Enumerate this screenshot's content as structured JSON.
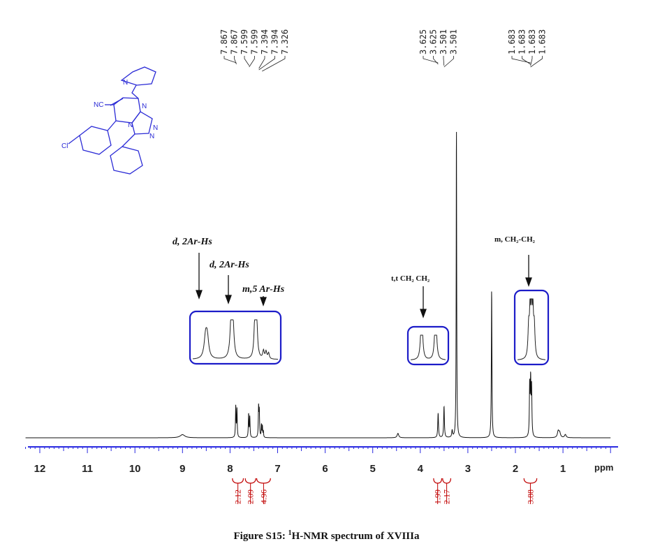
{
  "caption": {
    "prefix": "Figure S15: ",
    "superscript": "1",
    "rest": "H-NMR spectrum of XVIIIa"
  },
  "colors": {
    "axis": "#2a2ae0",
    "integral": "#c00000",
    "box": "#1c1cc8",
    "molecule": "#2b2bd6",
    "spectrum": "#111111"
  },
  "molecule": {
    "labels": [
      "NC",
      "N",
      "N",
      "N",
      "N",
      "N",
      "Cl"
    ]
  },
  "annotations": [
    {
      "text": "d, 2Ar-Hs"
    },
    {
      "text": "d, 2Ar-Hs"
    },
    {
      "text": "m,5 Ar-Hs"
    },
    {
      "text": "t,t  CH₂   CH₂"
    },
    {
      "text": "m,  CH₂-CH₂"
    }
  ],
  "chart_data": {
    "type": "line",
    "title": "",
    "xlabel": "ppm",
    "ylabel": "",
    "xlim": [
      12.3,
      0.0
    ],
    "x_reversed": true,
    "ylim": [
      0,
      1
    ],
    "grid": false,
    "x_major_ticks": [
      "12",
      "11",
      "10",
      "9",
      "8",
      "7",
      "6",
      "5",
      "4",
      "3",
      "2",
      "1"
    ],
    "x_unit_label": "ppm",
    "peak_labels": [
      {
        "group": "aromatic",
        "values": [
          "7.867",
          "7.867",
          "7.599",
          "7.599",
          "7.394",
          "7.394",
          "7.326"
        ]
      },
      {
        "group": "ch2",
        "values": [
          "3.625",
          "3.625",
          "3.501",
          "3.501"
        ]
      },
      {
        "group": "ch2ch2",
        "values": [
          "1.683",
          "1.683",
          "1.683",
          "1.683"
        ]
      }
    ],
    "integrals": [
      {
        "value": "2.12",
        "from": 7.95,
        "to": 7.72
      },
      {
        "value": "2.09",
        "from": 7.68,
        "to": 7.46
      },
      {
        "value": "4.96",
        "from": 7.44,
        "to": 7.15
      },
      {
        "value": "1.99",
        "from": 3.72,
        "to": 3.55
      },
      {
        "value": "2.17",
        "from": 3.53,
        "to": 3.36
      },
      {
        "value": "3.88",
        "from": 1.82,
        "to": 1.55
      }
    ],
    "peaks": [
      {
        "ppm": 9.0,
        "h": 0.01,
        "w": 0.06
      },
      {
        "ppm": 7.88,
        "h": 0.1,
        "w": 0.007
      },
      {
        "ppm": 7.855,
        "h": 0.09,
        "w": 0.007
      },
      {
        "ppm": 7.61,
        "h": 0.075,
        "w": 0.007
      },
      {
        "ppm": 7.585,
        "h": 0.065,
        "w": 0.007
      },
      {
        "ppm": 7.4,
        "h": 0.095,
        "w": 0.007
      },
      {
        "ppm": 7.385,
        "h": 0.08,
        "w": 0.007
      },
      {
        "ppm": 7.34,
        "h": 0.04,
        "w": 0.006
      },
      {
        "ppm": 7.32,
        "h": 0.035,
        "w": 0.006
      },
      {
        "ppm": 7.3,
        "h": 0.02,
        "w": 0.006
      },
      {
        "ppm": 4.47,
        "h": 0.014,
        "w": 0.02
      },
      {
        "ppm": 3.625,
        "h": 0.078,
        "w": 0.009
      },
      {
        "ppm": 3.501,
        "h": 0.1,
        "w": 0.009
      },
      {
        "ppm": 3.33,
        "h": 0.022,
        "w": 0.01
      },
      {
        "ppm": 3.24,
        "h": 1.0,
        "w": 0.006
      },
      {
        "ppm": 2.5,
        "h": 0.475,
        "w": 0.007
      },
      {
        "ppm": 1.7,
        "h": 0.16,
        "w": 0.008
      },
      {
        "ppm": 1.68,
        "h": 0.17,
        "w": 0.008
      },
      {
        "ppm": 1.66,
        "h": 0.15,
        "w": 0.008
      },
      {
        "ppm": 1.1,
        "h": 0.02,
        "w": 0.02
      },
      {
        "ppm": 1.07,
        "h": 0.015,
        "w": 0.02
      },
      {
        "ppm": 0.95,
        "h": 0.01,
        "w": 0.02
      }
    ]
  }
}
